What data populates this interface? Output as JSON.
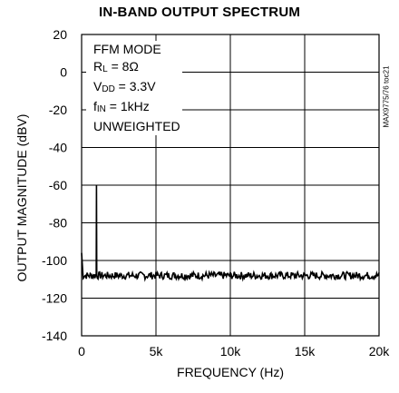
{
  "chart_data": {
    "type": "line",
    "title": "IN-BAND OUTPUT SPECTRUM",
    "xlabel": "FREQUENCY (Hz)",
    "ylabel": "OUTPUT MAGNITUDE (dBV)",
    "xlim": [
      0,
      20000
    ],
    "ylim": [
      -140,
      20
    ],
    "x_ticks": [
      0,
      5000,
      10000,
      15000,
      20000
    ],
    "x_tick_labels": [
      "0",
      "5k",
      "10k",
      "15k",
      "20k"
    ],
    "y_ticks": [
      20,
      0,
      -20,
      -40,
      -60,
      -80,
      -100,
      -120,
      -140
    ],
    "y_tick_labels": [
      "20",
      "0",
      "-20",
      "-40",
      "-60",
      "-80",
      "-100",
      "-120",
      "-140"
    ],
    "grid": true,
    "annotations": {
      "mode": "FFM MODE",
      "rl_main": "R",
      "rl_sub": "L",
      "rl_val": " = 8Ω",
      "vdd_main": "V",
      "vdd_sub": "DD",
      "vdd_val": " = 3.3V",
      "fin_main": "f",
      "fin_sub": "IN",
      "fin_val": " = 1kHz",
      "weighting": "UNWEIGHTED"
    },
    "figure_code": "MAX9775/76 toc21",
    "spectrum": {
      "noise_floor_dbv": -108,
      "noise_peak_to_peak_db": 4,
      "fundamental": {
        "x": 1000,
        "y": -60
      },
      "dc_spike": {
        "x": 0,
        "y": -96
      }
    }
  },
  "colors": {
    "line": "#000000",
    "grid": "#000000",
    "background": "#ffffff"
  }
}
